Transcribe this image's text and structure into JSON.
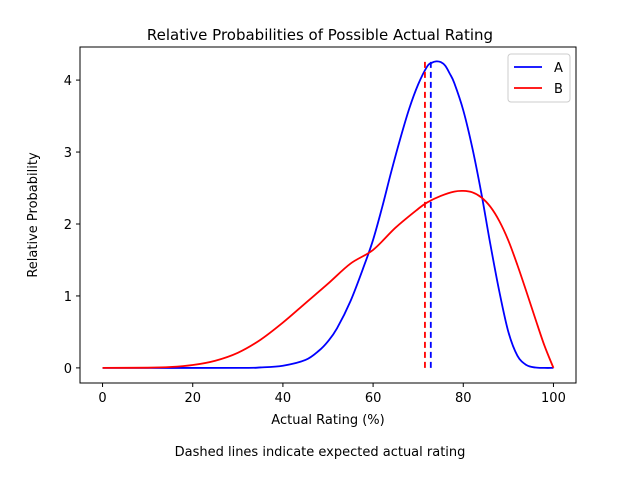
{
  "chart_data": {
    "type": "line",
    "title": "Relative Probabilities of Possible Actual Rating",
    "xlabel": "Actual Rating (%)",
    "ylabel": "Relative Probability",
    "caption": "Dashed lines indicate expected actual rating",
    "xlim": [
      -5,
      105
    ],
    "ylim": [
      -0.21,
      4.46
    ],
    "xticks": [
      0,
      20,
      40,
      60,
      80,
      100
    ],
    "xtick_labels": [
      "0",
      "20",
      "40",
      "60",
      "80",
      "100"
    ],
    "yticks": [
      0,
      1,
      2,
      3,
      4
    ],
    "ytick_labels": [
      "0",
      "1",
      "2",
      "3",
      "4"
    ],
    "grid": false,
    "legend_position": "top-right",
    "series": [
      {
        "name": "A",
        "color": "#0000ff",
        "expected": 72.8,
        "x": [
          0,
          30,
          35,
          40,
          45,
          48,
          50,
          52,
          55,
          58,
          60,
          62,
          64,
          66,
          68,
          70,
          72,
          73,
          74,
          75,
          76,
          77,
          78,
          80,
          82,
          84,
          86,
          88,
          90,
          92,
          94,
          96,
          98,
          100
        ],
        "values": [
          0,
          0,
          0.006,
          0.03,
          0.11,
          0.24,
          0.37,
          0.55,
          0.93,
          1.42,
          1.78,
          2.23,
          2.72,
          3.18,
          3.6,
          3.94,
          4.19,
          4.24,
          4.26,
          4.25,
          4.2,
          4.09,
          3.96,
          3.58,
          3.06,
          2.43,
          1.72,
          1.06,
          0.5,
          0.17,
          0.04,
          0.005,
          0.0,
          0
        ]
      },
      {
        "name": "B",
        "color": "#ff0000",
        "expected": 71.5,
        "x": [
          0,
          10,
          15,
          20,
          25,
          30,
          35,
          40,
          45,
          50,
          55,
          60,
          65,
          70,
          72,
          75,
          78,
          80,
          82,
          84,
          86,
          88,
          90,
          92,
          94,
          96,
          98,
          100
        ],
        "values": [
          0,
          0.003,
          0.012,
          0.04,
          0.1,
          0.21,
          0.39,
          0.63,
          0.9,
          1.17,
          1.45,
          1.64,
          1.95,
          2.21,
          2.3,
          2.39,
          2.45,
          2.46,
          2.44,
          2.37,
          2.24,
          2.04,
          1.77,
          1.43,
          1.06,
          0.68,
          0.31,
          0
        ]
      }
    ]
  }
}
